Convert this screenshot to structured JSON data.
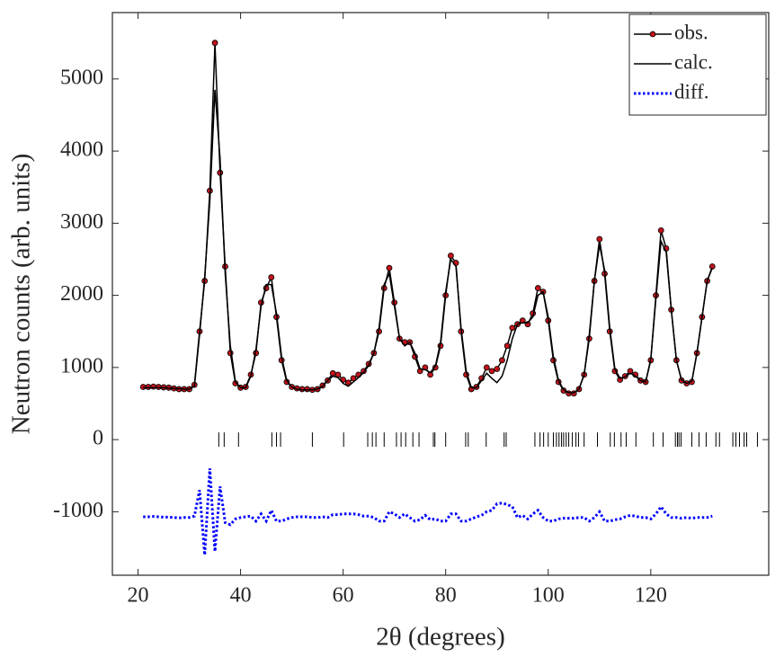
{
  "chart_data": {
    "type": "line",
    "xlabel": "2θ (degrees)",
    "ylabel": "Neutron counts (arb. units)",
    "xlim": [
      15,
      143
    ],
    "ylim": [
      -1880,
      5920
    ],
    "xticks": [
      20,
      40,
      60,
      80,
      100,
      120
    ],
    "yticks": [
      -1000,
      0,
      1000,
      2000,
      3000,
      4000,
      5000
    ],
    "legend": "upper right",
    "x": [
      21,
      22,
      23,
      24,
      25,
      26,
      27,
      28,
      29,
      30,
      31,
      32,
      33,
      34,
      35,
      36,
      37,
      38,
      39,
      40,
      41,
      42,
      43,
      44,
      45,
      46,
      47,
      48,
      49,
      50,
      51,
      52,
      53,
      54,
      55,
      56,
      57,
      58,
      59,
      60,
      61,
      62,
      63,
      64,
      65,
      66,
      67,
      68,
      69,
      70,
      71,
      72,
      73,
      74,
      75,
      76,
      77,
      78,
      79,
      80,
      81,
      82,
      83,
      84,
      85,
      86,
      87,
      88,
      89,
      90,
      91,
      92,
      93,
      94,
      95,
      96,
      97,
      98,
      99,
      100,
      101,
      102,
      103,
      104,
      105,
      106,
      107,
      108,
      109,
      110,
      111,
      112,
      113,
      114,
      115,
      116,
      117,
      118,
      119,
      120,
      121,
      122,
      123,
      124,
      125,
      126,
      127,
      128,
      129,
      130,
      131,
      132
    ],
    "series": [
      {
        "name": "obs.",
        "color": "#000000",
        "marker": "o",
        "marker_color": "#c0141c",
        "style": "solid",
        "values": [
          730,
          730,
          735,
          730,
          725,
          720,
          710,
          700,
          700,
          700,
          760,
          1500,
          2200,
          3450,
          5500,
          3700,
          2400,
          1200,
          780,
          720,
          730,
          900,
          1200,
          1900,
          2100,
          2250,
          1700,
          1100,
          800,
          730,
          710,
          700,
          700,
          690,
          700,
          750,
          820,
          920,
          900,
          830,
          790,
          850,
          900,
          950,
          1050,
          1200,
          1500,
          2100,
          2380,
          1900,
          1400,
          1350,
          1350,
          1150,
          950,
          1000,
          900,
          1000,
          1300,
          2000,
          2550,
          2450,
          1500,
          900,
          700,
          730,
          850,
          1000,
          950,
          980,
          1100,
          1300,
          1550,
          1600,
          1650,
          1600,
          1750,
          2100,
          2050,
          1650,
          1100,
          800,
          680,
          640,
          640,
          700,
          900,
          1400,
          2200,
          2780,
          2300,
          1500,
          950,
          830,
          880,
          950,
          900,
          820,
          800,
          1100,
          2000,
          2900,
          2650,
          1800,
          1100,
          820,
          780,
          800,
          1200,
          1700,
          2200,
          2400
        ]
      },
      {
        "name": "calc.",
        "color": "#000000",
        "style": "solid",
        "values": [
          720,
          720,
          720,
          720,
          720,
          715,
          710,
          705,
          700,
          700,
          740,
          1450,
          2250,
          3300,
          4850,
          3900,
          2300,
          1300,
          800,
          720,
          720,
          880,
          1250,
          1850,
          2150,
          2150,
          1750,
          1150,
          820,
          730,
          700,
          690,
          690,
          690,
          700,
          740,
          820,
          880,
          860,
          780,
          740,
          800,
          860,
          930,
          1030,
          1200,
          1550,
          2150,
          2300,
          1850,
          1400,
          1300,
          1350,
          1200,
          980,
          970,
          930,
          1020,
          1350,
          2050,
          2500,
          2400,
          1550,
          950,
          720,
          720,
          820,
          920,
          850,
          790,
          880,
          1100,
          1400,
          1600,
          1620,
          1620,
          1700,
          2000,
          2050,
          1700,
          1150,
          820,
          690,
          650,
          650,
          700,
          900,
          1450,
          2200,
          2700,
          2350,
          1550,
          980,
          850,
          870,
          920,
          880,
          820,
          800,
          1120,
          1950,
          2750,
          2600,
          1800,
          1100,
          830,
          780,
          810,
          1200,
          1700,
          2200,
          2380
        ]
      },
      {
        "name": "diff.",
        "color": "#0000ff",
        "style": "dotted",
        "values": [
          -1070,
          -1070,
          -1065,
          -1070,
          -1075,
          -1075,
          -1080,
          -1085,
          -1080,
          -1080,
          -1060,
          -700,
          -1600,
          -400,
          -1550,
          -650,
          -1150,
          -1180,
          -1100,
          -1080,
          -1070,
          -1060,
          -1130,
          -1030,
          -1130,
          -980,
          -1130,
          -1130,
          -1100,
          -1080,
          -1070,
          -1070,
          -1070,
          -1080,
          -1080,
          -1070,
          -1080,
          -1040,
          -1040,
          -1030,
          -1030,
          -1030,
          -1040,
          -1060,
          -1060,
          -1080,
          -1130,
          -1130,
          -1000,
          -1030,
          -1080,
          -1030,
          -1080,
          -1130,
          -1110,
          -1050,
          -1110,
          -1100,
          -1130,
          -1130,
          -1030,
          -1030,
          -1130,
          -1130,
          -1100,
          -1070,
          -1050,
          -1000,
          -980,
          -890,
          -880,
          -900,
          -930,
          -1080,
          -1050,
          -1100,
          -1030,
          -980,
          -1080,
          -1130,
          -1130,
          -1100,
          -1090,
          -1090,
          -1090,
          -1080,
          -1080,
          -1130,
          -1080,
          -1000,
          -1130,
          -1130,
          -1110,
          -1100,
          -1070,
          -1050,
          -1060,
          -1080,
          -1080,
          -1100,
          -1030,
          -930,
          -1030,
          -1080,
          -1080,
          -1090,
          -1080,
          -1090,
          -1080,
          -1080,
          -1080,
          -1060
        ]
      }
    ],
    "reflections": {
      "y": 0,
      "x": [
        35.75,
        36.8,
        39.6,
        46.1,
        47.0,
        47.8,
        54.0,
        60.1,
        64.8,
        65.7,
        66.4,
        68.0,
        70.4,
        71.3,
        72.2,
        73.6,
        74.8,
        77.6,
        77.9,
        80.0,
        83.9,
        84.4,
        87.9,
        91.4,
        91.8,
        97.4,
        98.4,
        99.1,
        100.0,
        101.0,
        101.6,
        102.1,
        102.6,
        103.0,
        103.5,
        104.0,
        104.7,
        105.4,
        105.9,
        107.0,
        109.6,
        112.1,
        112.9,
        114.2,
        115.2,
        117.1,
        120.5,
        122.4,
        124.8,
        125.2,
        125.5,
        125.9,
        128.0,
        129.4,
        130.8,
        132.7,
        133.4,
        136.0,
        136.6,
        137.3,
        138.2,
        138.7,
        140.8
      ],
      "color": "#000000"
    }
  }
}
